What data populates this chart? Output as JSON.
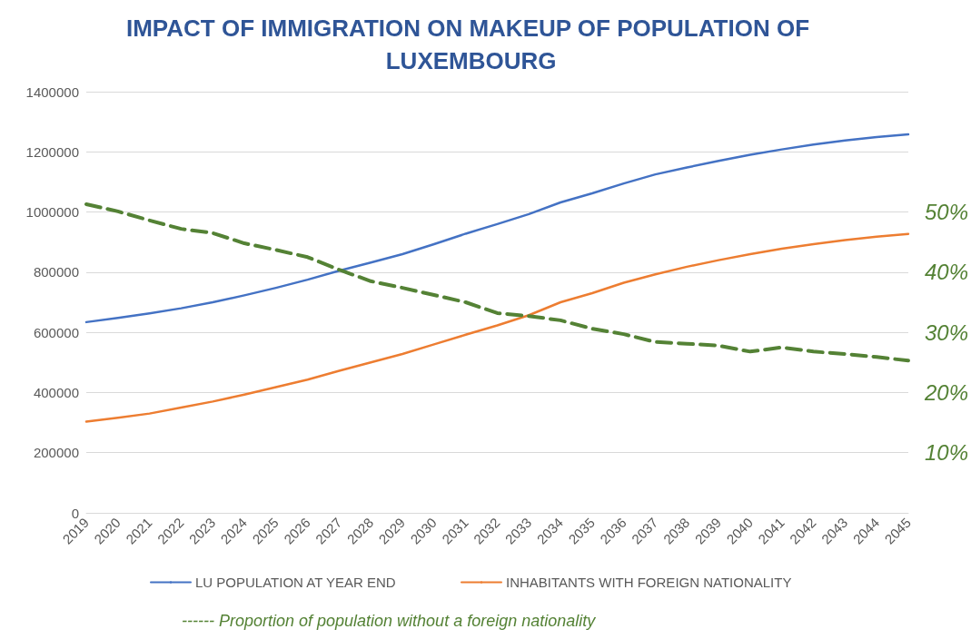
{
  "chart_data": {
    "type": "line",
    "title": "IMPACT OF IMMIGRATION ON MAKEUP OF POPULATION OF LUXEMBOURG",
    "categories": [
      "2019",
      "2020",
      "2021",
      "2022",
      "2023",
      "2024",
      "2025",
      "2026",
      "2027",
      "2028",
      "2029",
      "2030",
      "2031",
      "2032",
      "2033",
      "2034",
      "2035",
      "2036",
      "2037",
      "2038",
      "2039",
      "2040",
      "2041",
      "2042",
      "2043",
      "2044",
      "2045"
    ],
    "series": [
      {
        "name": "LU POPULATION AT YEAR END",
        "color": "#4472c4",
        "values": [
          634000,
          648000,
          663000,
          680000,
          700000,
          723000,
          748000,
          775000,
          805000,
          832000,
          860000,
          893000,
          928000,
          960000,
          993000,
          1032000,
          1062000,
          1095000,
          1125000,
          1148000,
          1170000,
          1190000,
          1208000,
          1224000,
          1238000,
          1249000,
          1258000
        ]
      },
      {
        "name": "INHABITANTS WITH FOREIGN NATIONALITY",
        "color": "#ed7d31",
        "values": [
          303000,
          316000,
          330000,
          350000,
          370000,
          393000,
          418000,
          443000,
          472000,
          500000,
          528000,
          560000,
          592000,
          623000,
          657000,
          700000,
          730000,
          765000,
          793000,
          818000,
          840000,
          860000,
          878000,
          893000,
          907000,
          918000,
          927000
        ]
      },
      {
        "name": "------ Proportion of population without a foreign nationality",
        "color": "#548235",
        "axis": "y2",
        "line_style": "dashed",
        "values": [
          51.3,
          50.1,
          48.6,
          47.2,
          46.5,
          44.8,
          43.7,
          42.5,
          40.4,
          38.5,
          37.4,
          36.2,
          35.0,
          33.2,
          32.7,
          32.0,
          30.6,
          29.7,
          28.4,
          28.1,
          27.8,
          26.8,
          27.5,
          26.8,
          26.4,
          25.9,
          25.3
        ]
      }
    ],
    "ylim": [
      0,
      1400000
    ],
    "yticks": [
      0,
      200000,
      400000,
      600000,
      800000,
      1000000,
      1200000,
      1400000
    ],
    "y2lim": [
      0,
      70
    ],
    "y2ticks": [
      {
        "value": 10,
        "label": "10%"
      },
      {
        "value": 20,
        "label": "20%"
      },
      {
        "value": 30,
        "label": "30%"
      },
      {
        "value": 40,
        "label": "40%"
      },
      {
        "value": 50,
        "label": "50%"
      }
    ],
    "grid": "y",
    "legend": "bottom",
    "marker": "none",
    "line_style": "solid"
  }
}
